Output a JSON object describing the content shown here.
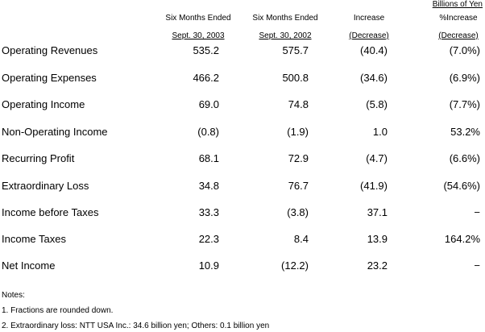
{
  "units": "Billions of Yen",
  "columns": [
    {
      "line1": "Six Months Ended",
      "line2": "Sept. 30, 2003"
    },
    {
      "line1": "Six Months Ended",
      "line2": "Sept. 30, 2002"
    },
    {
      "line1": "Increase",
      "line2": "(Decrease)"
    },
    {
      "line1": "%Increase",
      "line2": "(Decrease)"
    }
  ],
  "rows": [
    {
      "label": "Operating Revenues",
      "values": [
        "535.2",
        "575.7",
        "(40.4)",
        "(7.0%)"
      ]
    },
    {
      "label": "Operating Expenses",
      "values": [
        "466.2",
        "500.8",
        "(34.6)",
        "(6.9%)"
      ]
    },
    {
      "label": "Operating Income",
      "values": [
        "69.0",
        "74.8",
        "(5.8)",
        "(7.7%)"
      ]
    },
    {
      "label": "Non-Operating Income",
      "values": [
        "(0.8)",
        "(1.9)",
        "1.0",
        "53.2%"
      ]
    },
    {
      "label": "Recurring Profit",
      "values": [
        "68.1",
        "72.9",
        "(4.7)",
        "(6.6%)"
      ]
    },
    {
      "label": "Extraordinary Loss",
      "values": [
        "34.8",
        "76.7",
        "(41.9)",
        "(54.6%)"
      ]
    },
    {
      "label": "Income before Taxes",
      "values": [
        "33.3",
        "(3.8)",
        "37.1",
        "−"
      ]
    },
    {
      "label": "Income Taxes",
      "values": [
        "22.3",
        "8.4",
        "13.9",
        "164.2%"
      ]
    },
    {
      "label": "Net Income",
      "values": [
        "10.9",
        "(12.2)",
        "23.2",
        "−"
      ]
    }
  ],
  "notes": {
    "title": "Notes:",
    "items": [
      "1. Fractions are rounded down.",
      "2. Extraordinary loss: NTT USA Inc.: 34.6 billion yen; Others: 0.1 billion yen"
    ]
  }
}
